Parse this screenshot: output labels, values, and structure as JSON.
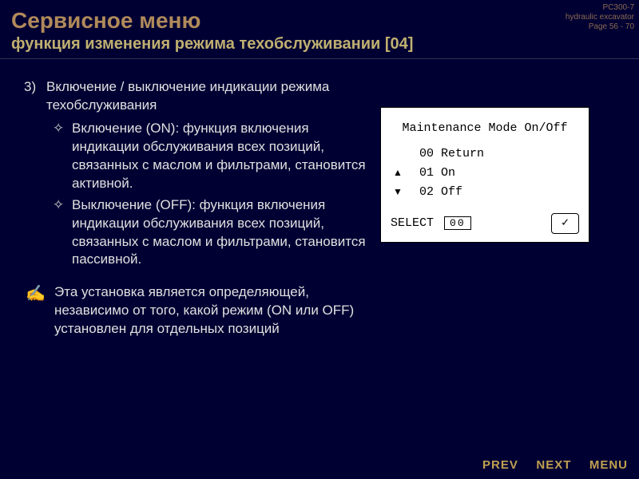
{
  "meta": {
    "model": "PC300-7",
    "product": "hydraulic excavator",
    "page": "Page 56 - 70"
  },
  "title": {
    "main": "Сервисное меню",
    "sub": "функция изменения режима техобслуживании [04]"
  },
  "section": {
    "num": "3)",
    "head": "Включение / выключение индикации режима техобслуживания"
  },
  "bullets": {
    "on": "Включение (ON): функция включения индикации обслуживания всех позиций, связанных с маслом и фильтрами, становится активной.",
    "off": "Выключение (OFF): функция включения индикации обслуживания всех позиций, связанных с маслом и фильтрами, становится пассивной."
  },
  "note": "Эта установка является определяющей, независимо от того, какой режим (ON или OFF) установлен для отдельных позиций",
  "screen": {
    "title": "Maintenance Mode On/Off",
    "l0": "00 Return",
    "l1": "01 On",
    "l2": "02 Off",
    "select": "SELECT",
    "selval": "00",
    "ok": "✓"
  },
  "nav": {
    "prev": "PREV",
    "next": "NEXT",
    "menu": "MENU"
  },
  "colors": {
    "background": "#000033",
    "title_main": "#b08a5a",
    "title_sub": "#c0b070",
    "body_text": "#e0e0e0",
    "nav": "#c0a050",
    "meta": "#8a6a50",
    "screen_bg": "#ffffff"
  }
}
